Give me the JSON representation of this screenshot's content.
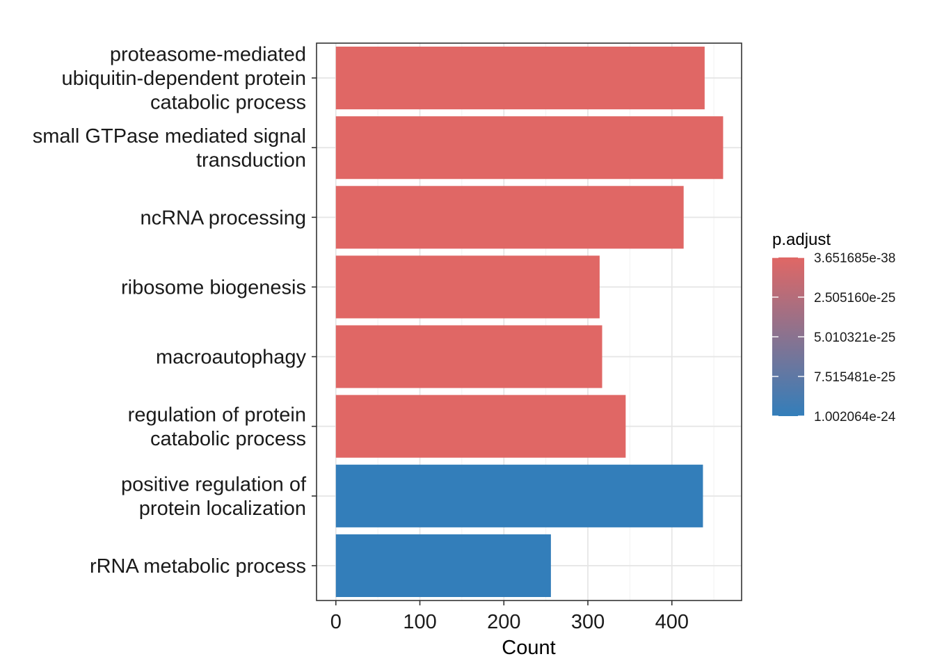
{
  "chart_data": {
    "type": "bar",
    "orientation": "horizontal",
    "categories": [
      [
        "proteasome-mediated",
        "ubiquitin-dependent protein",
        "catabolic process"
      ],
      [
        "small GTPase mediated signal",
        "transduction"
      ],
      [
        "ncRNA processing"
      ],
      [
        "ribosome biogenesis"
      ],
      [
        "macroautophagy"
      ],
      [
        "regulation of protein",
        "catabolic process"
      ],
      [
        "positive regulation of",
        "protein localization"
      ],
      [
        "rRNA metabolic process"
      ]
    ],
    "values": [
      439,
      461,
      414,
      314,
      317,
      345,
      437,
      256
    ],
    "p_adjust": [
      3.651685e-38,
      3.651685e-38,
      3.651685e-38,
      3.651685e-38,
      3.651685e-38,
      3.651685e-38,
      1.002064e-24,
      1.002064e-24
    ],
    "xlabel": "Count",
    "ylabel": "",
    "xlim": [
      -23,
      483
    ],
    "x_ticks": [
      0,
      100,
      200,
      300,
      400
    ],
    "grid": true,
    "legend": {
      "title": "p.adjust",
      "position": "right",
      "labels": [
        "3.651685e-38",
        "2.505160e-25",
        "5.010321e-25",
        "7.515481e-25",
        "1.002064e-24"
      ],
      "values": [
        3.651685e-38,
        2.50516e-25,
        5.010321e-25,
        7.515481e-25,
        1.002064e-24
      ],
      "color_low": "#E06765",
      "color_high": "#337EBA"
    }
  }
}
